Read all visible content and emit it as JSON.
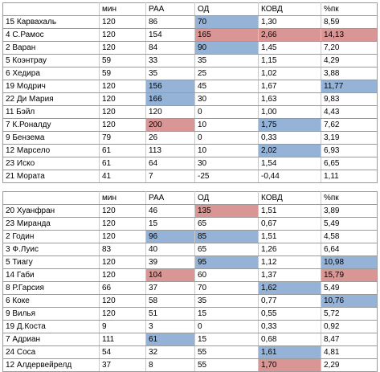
{
  "colors": {
    "blue": "#95b3d7",
    "red": "#da9694"
  },
  "tables": [
    {
      "header": [
        "",
        "мин",
        "РАА",
        "ОД",
        "КОВД",
        "%пк"
      ],
      "rows": [
        {
          "cells": [
            "15 Карвахаль",
            "120",
            "86",
            "70",
            "1,30",
            "8,59"
          ],
          "hl": [
            "",
            "",
            "",
            "blue",
            "",
            ""
          ]
        },
        {
          "cells": [
            "4 С.Рамос",
            "120",
            "154",
            "165",
            "2,66",
            "14,13"
          ],
          "hl": [
            "",
            "",
            "",
            "red",
            "red",
            "red"
          ]
        },
        {
          "cells": [
            "2 Варан",
            "120",
            "84",
            "90",
            "1,45",
            "7,20"
          ],
          "hl": [
            "",
            "",
            "",
            "blue",
            "",
            ""
          ]
        },
        {
          "cells": [
            "5 Коэнтрау",
            "59",
            "33",
            "35",
            "1,15",
            "4,29"
          ],
          "hl": [
            "",
            "",
            "",
            "",
            "",
            ""
          ]
        },
        {
          "cells": [
            "6 Хедира",
            "59",
            "35",
            "25",
            "1,02",
            "3,88"
          ],
          "hl": [
            "",
            "",
            "",
            "",
            "",
            ""
          ]
        },
        {
          "cells": [
            "19 Модрич",
            "120",
            "156",
            "45",
            "1,67",
            "11,77"
          ],
          "hl": [
            "",
            "",
            "blue",
            "",
            "",
            "blue"
          ]
        },
        {
          "cells": [
            "22 Ди Мария",
            "120",
            "166",
            "30",
            "1,63",
            "9,83"
          ],
          "hl": [
            "",
            "",
            "blue",
            "",
            "",
            ""
          ]
        },
        {
          "cells": [
            "11 Бэйл",
            "120",
            "120",
            "0",
            "1,00",
            "4,43"
          ],
          "hl": [
            "",
            "",
            "",
            "",
            "",
            ""
          ]
        },
        {
          "cells": [
            "7 К.Роналду",
            "120",
            "200",
            "10",
            "1,75",
            "7,62"
          ],
          "hl": [
            "",
            "",
            "red",
            "",
            "blue",
            ""
          ]
        },
        {
          "cells": [
            "9 Бензема",
            "79",
            "26",
            "0",
            "0,33",
            "3,19"
          ],
          "hl": [
            "",
            "",
            "",
            "",
            "",
            ""
          ]
        },
        {
          "cells": [
            "12 Марсело",
            "61",
            "113",
            "10",
            "2,02",
            "6,93"
          ],
          "hl": [
            "",
            "",
            "",
            "",
            "blue",
            ""
          ]
        },
        {
          "cells": [
            "23 Иско",
            "61",
            "64",
            "30",
            "1,54",
            "6,65"
          ],
          "hl": [
            "",
            "",
            "",
            "",
            "",
            ""
          ]
        },
        {
          "cells": [
            "21 Мората",
            "41",
            "7",
            "-25",
            "-0,44",
            "1,11"
          ],
          "hl": [
            "",
            "",
            "",
            "",
            "",
            ""
          ]
        }
      ]
    },
    {
      "header": [
        "",
        "мин",
        "РАА",
        "ОД",
        "КОВД",
        "%пк"
      ],
      "rows": [
        {
          "cells": [
            "20 Хуанфран",
            "120",
            "46",
            "135",
            "1,51",
            "3,89"
          ],
          "hl": [
            "",
            "",
            "",
            "red",
            "",
            ""
          ]
        },
        {
          "cells": [
            "23 Миранда",
            "120",
            "15",
            "65",
            "0,67",
            "5,49"
          ],
          "hl": [
            "",
            "",
            "",
            "",
            "",
            ""
          ]
        },
        {
          "cells": [
            "2 Годин",
            "120",
            "96",
            "85",
            "1,51",
            "4,58"
          ],
          "hl": [
            "",
            "",
            "blue",
            "blue",
            "",
            ""
          ]
        },
        {
          "cells": [
            "3 Ф.Луис",
            "83",
            "40",
            "65",
            "1,26",
            "6,64"
          ],
          "hl": [
            "",
            "",
            "",
            "",
            "",
            ""
          ]
        },
        {
          "cells": [
            "5 Тиагу",
            "120",
            "39",
            "95",
            "1,12",
            "10,98"
          ],
          "hl": [
            "",
            "",
            "",
            "blue",
            "",
            "blue"
          ]
        },
        {
          "cells": [
            "14 Габи",
            "120",
            "104",
            "60",
            "1,37",
            "15,79"
          ],
          "hl": [
            "",
            "",
            "red",
            "",
            "",
            "red"
          ]
        },
        {
          "cells": [
            "8 Р.Гарсия",
            "66",
            "37",
            "70",
            "1,62",
            "5,49"
          ],
          "hl": [
            "",
            "",
            "",
            "",
            "blue",
            ""
          ]
        },
        {
          "cells": [
            "6 Коке",
            "120",
            "58",
            "35",
            "0,77",
            "10,76"
          ],
          "hl": [
            "",
            "",
            "",
            "",
            "",
            "blue"
          ]
        },
        {
          "cells": [
            "9 Вилья",
            "120",
            "51",
            "15",
            "0,55",
            "5,72"
          ],
          "hl": [
            "",
            "",
            "",
            "",
            "",
            ""
          ]
        },
        {
          "cells": [
            "19 Д.Коста",
            "9",
            "3",
            "0",
            "0,33",
            "0,92"
          ],
          "hl": [
            "",
            "",
            "",
            "",
            "",
            ""
          ]
        },
        {
          "cells": [
            "7 Адриан",
            "111",
            "61",
            "15",
            "0,68",
            "8,47"
          ],
          "hl": [
            "",
            "",
            "blue",
            "",
            "",
            ""
          ]
        },
        {
          "cells": [
            "24 Соса",
            "54",
            "32",
            "55",
            "1,61",
            "4,81"
          ],
          "hl": [
            "",
            "",
            "",
            "",
            "blue",
            ""
          ]
        },
        {
          "cells": [
            "12 Алдервейрелд",
            "37",
            "8",
            "55",
            "1,70",
            "2,29"
          ],
          "hl": [
            "",
            "",
            "",
            "",
            "red",
            ""
          ]
        }
      ]
    }
  ]
}
